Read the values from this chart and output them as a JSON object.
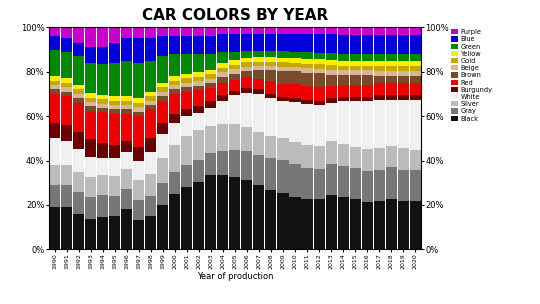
{
  "years": [
    1990,
    1991,
    1992,
    1993,
    1994,
    1995,
    1996,
    1997,
    1998,
    1999,
    2000,
    2001,
    2002,
    2003,
    2004,
    2005,
    2006,
    2007,
    2008,
    2009,
    2010,
    2011,
    2012,
    2013,
    2014,
    2015,
    2016,
    2017,
    2018,
    2019,
    2020
  ],
  "title": "CAR COLORS BY YEAR",
  "xlabel": "Year of production",
  "colors": {
    "Black": "#111111",
    "Gray": "#777777",
    "Silver": "#bbbbbb",
    "White": "#f0f0f0",
    "Burgundy": "#6b0000",
    "Red": "#ee0000",
    "Brown": "#7b4a2d",
    "Beige": "#d4b896",
    "Gold": "#c8a800",
    "Yellow": "#ffee00",
    "Green": "#008800",
    "Blue": "#0000dd",
    "Purple": "#cc00cc"
  },
  "data": {
    "Black": [
      19,
      19,
      16,
      14,
      15,
      15,
      18,
      13,
      15,
      20,
      25,
      28,
      30,
      33,
      33,
      33,
      32,
      30,
      28,
      26,
      24,
      22,
      22,
      23,
      22,
      21,
      20,
      20,
      21,
      20,
      20
    ],
    "Gray": [
      10,
      10,
      10,
      10,
      10,
      9,
      9,
      9,
      9,
      10,
      10,
      10,
      10,
      10,
      11,
      12,
      13,
      14,
      15,
      15,
      15,
      14,
      13,
      13,
      13,
      13,
      13,
      13,
      13,
      13,
      13
    ],
    "Silver": [
      9,
      9,
      9,
      9,
      9,
      9,
      9,
      9,
      10,
      11,
      12,
      13,
      13,
      12,
      12,
      12,
      11,
      11,
      10,
      10,
      10,
      10,
      10,
      10,
      9,
      9,
      9,
      9,
      9,
      9,
      8
    ],
    "White": [
      12,
      11,
      10,
      9,
      8,
      8,
      8,
      9,
      10,
      11,
      10,
      9,
      8,
      8,
      10,
      13,
      16,
      18,
      18,
      17,
      18,
      18,
      18,
      16,
      18,
      19,
      20,
      20,
      19,
      20,
      21
    ],
    "Burgundy": [
      7,
      7,
      8,
      8,
      7,
      6,
      5,
      6,
      6,
      5,
      4,
      3,
      3,
      3,
      3,
      2,
      2,
      2,
      2,
      2,
      2,
      2,
      2,
      2,
      2,
      2,
      2,
      2,
      2,
      2,
      2
    ],
    "Red": [
      13,
      13,
      13,
      13,
      14,
      14,
      12,
      14,
      13,
      10,
      9,
      8,
      7,
      6,
      5,
      5,
      5,
      5,
      6,
      6,
      6,
      6,
      6,
      5,
      5,
      5,
      5,
      5,
      5,
      5,
      5
    ],
    "Brown": [
      2,
      2,
      2,
      2,
      2,
      2,
      2,
      2,
      2,
      2,
      2,
      2,
      2,
      2,
      3,
      3,
      3,
      4,
      5,
      6,
      6,
      6,
      6,
      5,
      4,
      4,
      4,
      3,
      3,
      3,
      3
    ],
    "Beige": [
      2,
      2,
      2,
      2,
      2,
      2,
      2,
      2,
      2,
      2,
      2,
      2,
      2,
      2,
      2,
      2,
      2,
      2,
      2,
      2,
      2,
      2,
      2,
      2,
      2,
      2,
      2,
      2,
      2,
      2,
      2
    ],
    "Gold": [
      2,
      2,
      2,
      2,
      2,
      2,
      2,
      2,
      2,
      2,
      2,
      2,
      2,
      2,
      2,
      2,
      2,
      2,
      2,
      2,
      2,
      2,
      2,
      2,
      2,
      2,
      2,
      2,
      2,
      2,
      2
    ],
    "Yellow": [
      2,
      2,
      2,
      2,
      2,
      2,
      2,
      2,
      2,
      2,
      2,
      2,
      2,
      2,
      2,
      2,
      2,
      2,
      2,
      2,
      2,
      2,
      2,
      2,
      2,
      2,
      2,
      2,
      2,
      2,
      2
    ],
    "Green": [
      12,
      12,
      13,
      14,
      14,
      15,
      16,
      16,
      14,
      12,
      10,
      9,
      8,
      7,
      5,
      4,
      3,
      3,
      3,
      3,
      3,
      3,
      3,
      3,
      3,
      3,
      3,
      3,
      3,
      3,
      3
    ],
    "Blue": [
      6,
      6,
      6,
      7,
      8,
      9,
      10,
      11,
      10,
      9,
      8,
      8,
      8,
      8,
      8,
      8,
      8,
      8,
      8,
      8,
      8,
      8,
      8,
      8,
      8,
      8,
      8,
      8,
      8,
      8,
      8
    ],
    "Purple": [
      4,
      5,
      7,
      9,
      9,
      7,
      5,
      5,
      5,
      4,
      4,
      4,
      4,
      4,
      3,
      3,
      3,
      3,
      3,
      3,
      3,
      3,
      3,
      3,
      3,
      3,
      3,
      3,
      3,
      3,
      3
    ]
  },
  "layer_order": [
    "Black",
    "Gray",
    "Silver",
    "White",
    "Burgundy",
    "Red",
    "Brown",
    "Beige",
    "Gold",
    "Yellow",
    "Green",
    "Blue",
    "Purple"
  ],
  "legend_order": [
    "Purple",
    "Blue",
    "Green",
    "Yellow",
    "Gold",
    "Beige",
    "Brown",
    "Red",
    "Burgundy",
    "White",
    "Silver",
    "Gray",
    "Black"
  ],
  "ylim": [
    0,
    100
  ],
  "yticks": [
    0,
    20,
    40,
    60,
    80,
    100
  ],
  "ytick_labels": [
    "0%",
    "20%",
    "40%",
    "60%",
    "80%",
    "100%"
  ]
}
